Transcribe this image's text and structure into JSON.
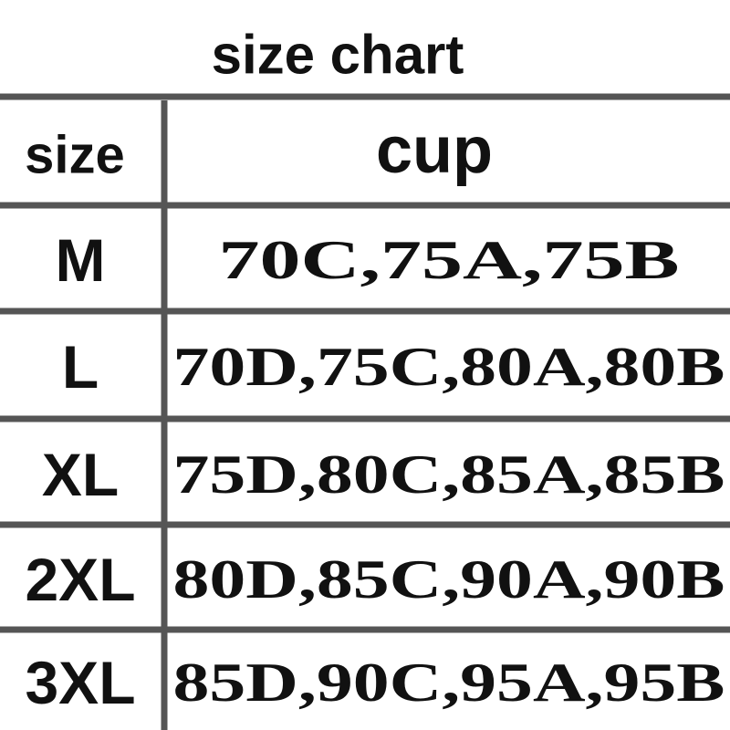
{
  "title": "size chart",
  "table": {
    "header": [
      "size",
      "cup"
    ],
    "rows": [
      [
        "M",
        "70C,75A,75B"
      ],
      [
        "L",
        "70D,75C,80A,80B"
      ],
      [
        "XL",
        "75D,80C,85A,85B"
      ],
      [
        "2XL",
        "80D,85C,90A,90B"
      ],
      [
        "3XL",
        "85D,90C,95A,95B"
      ]
    ]
  }
}
